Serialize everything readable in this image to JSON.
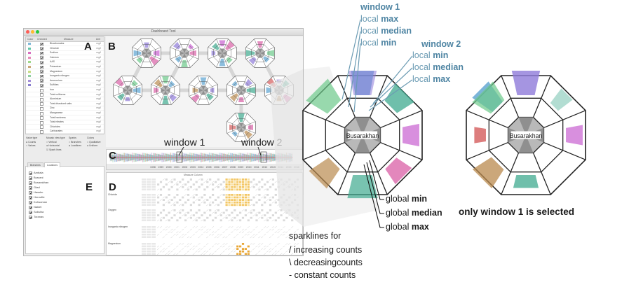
{
  "app": {
    "window_title": "Dashboard Tool",
    "table_headers": [
      "Color",
      "Checked",
      "Measure",
      "Unit"
    ],
    "measures": [
      {
        "name": "Bicarbonates",
        "unit": "mg/l",
        "color": "#7fb8d8",
        "checked": true
      },
      {
        "name": "Chloride",
        "unit": "mg/l",
        "color": "#63c7a8",
        "checked": true
      },
      {
        "name": "Sodium",
        "unit": "mg/l",
        "color": "#d86ec0",
        "checked": true
      },
      {
        "name": "Calcium",
        "unit": "mg/l",
        "color": "#e58ab8",
        "checked": true
      },
      {
        "name": "AAS",
        "unit": "mg/l",
        "color": "#9fd88a",
        "checked": true
      },
      {
        "name": "Potassium",
        "unit": "mg/l",
        "color": "#c9a777",
        "checked": true
      },
      {
        "name": "Magnesium",
        "unit": "mg/l",
        "color": "#c7dd86",
        "checked": true
      },
      {
        "name": "Inorganic nitrogen",
        "unit": "mg/l",
        "color": "#8fcfa0",
        "checked": true
      },
      {
        "name": "Ammonium",
        "unit": "mg/l",
        "color": "#a48fd8",
        "checked": true
      },
      {
        "name": "Sulfides",
        "unit": "mg/l",
        "color": "#8a7fd0",
        "checked": true
      },
      {
        "name": "Iron",
        "unit": "mg/l",
        "color": "",
        "checked": false
      },
      {
        "name": "Total coliforms",
        "unit": "mg/l",
        "color": "",
        "checked": false
      },
      {
        "name": "Aluminium",
        "unit": "mg/l",
        "color": "",
        "checked": false
      },
      {
        "name": "Total dissolved salts",
        "unit": "mg/l",
        "color": "",
        "checked": false
      },
      {
        "name": "Zinc",
        "unit": "mg/l",
        "color": "",
        "checked": false
      },
      {
        "name": "Manganese",
        "unit": "mg/l",
        "color": "",
        "checked": false
      },
      {
        "name": "Total hardness",
        "unit": "mg/l",
        "color": "",
        "checked": false
      },
      {
        "name": "Total nitrates",
        "unit": "mg/l",
        "color": "",
        "checked": false
      },
      {
        "name": "Chlorides",
        "unit": "mg/l",
        "color": "",
        "checked": false
      },
      {
        "name": "Carbonates",
        "unit": "mg/l",
        "color": "",
        "checked": false
      }
    ],
    "options": {
      "col1_title": "Value type",
      "col1": [
        "Counts",
        "Values"
      ],
      "col2_title": "Mosaic view type",
      "col2": [
        "Vertical",
        "Horizontal",
        "Spark lines"
      ],
      "col3_title": "Sparks",
      "col3": [
        "Branches",
        "Loadlines"
      ],
      "col4_title": "Colors",
      "col4": [
        "Qualitative",
        "Uniform"
      ]
    },
    "tabs": [
      "Branches",
      "Locations"
    ],
    "locations": [
      "Ambala",
      "Busrani",
      "Busarakhan",
      "Gtad",
      "Hassku",
      "Heroville",
      "Kohsoman",
      "Nakiet",
      "Soksiha",
      "Toranas"
    ],
    "timeline_label": "Measure Column",
    "timeline_years": [
      "1998",
      "1999",
      "2000",
      "2001",
      "2002",
      "2003",
      "2004",
      "2005",
      "2006",
      "2007",
      "2008",
      "2009",
      "2010",
      "2011",
      "2012",
      "2013",
      "2014",
      "2015",
      "2016"
    ],
    "heat_groups": [
      "",
      "Chloride",
      "Oxygen",
      "Inorganic nitrogen",
      "Magnesium"
    ]
  },
  "panel_letters": [
    "A",
    "B",
    "C",
    "D",
    "E"
  ],
  "annotations": {
    "window1": "window 1",
    "window2": "window 2"
  },
  "legend": {
    "window1_title": "window 1",
    "w1_max_prefix": "local ",
    "w1_max_bold": "max",
    "w1_median_prefix": "local ",
    "w1_median_bold": "median",
    "w1_min_prefix": "local ",
    "w1_min_bold": "min",
    "window2_title": "window 2",
    "w2_min_prefix": "local ",
    "w2_min_bold": "min",
    "w2_median_prefix": "local ",
    "w2_median_bold": "median",
    "w2_max_prefix": "local ",
    "w2_max_bold": "max",
    "g_min_prefix": "global ",
    "g_min_bold": "min",
    "g_median_prefix": "global ",
    "g_median_bold": "median",
    "g_max_prefix": "global ",
    "g_max_bold": "max"
  },
  "glyph_label": "Busarakhan",
  "caption": "only window 1 is selected",
  "sparklines": {
    "title": "sparklines for",
    "line1": "/  increasing counts",
    "line2": "\\  decreasingcounts",
    "line3": "-  constant counts"
  },
  "colors": {
    "window1": "#6b9bb3",
    "green": "#6cc98a",
    "blue": "#5ba2d0",
    "purple": "#8e7ad9",
    "teal": "#3faa8f",
    "magenta": "#c85fd0",
    "pink": "#d95fa5",
    "brown": "#b98a4e",
    "red": "#d45d5d"
  }
}
